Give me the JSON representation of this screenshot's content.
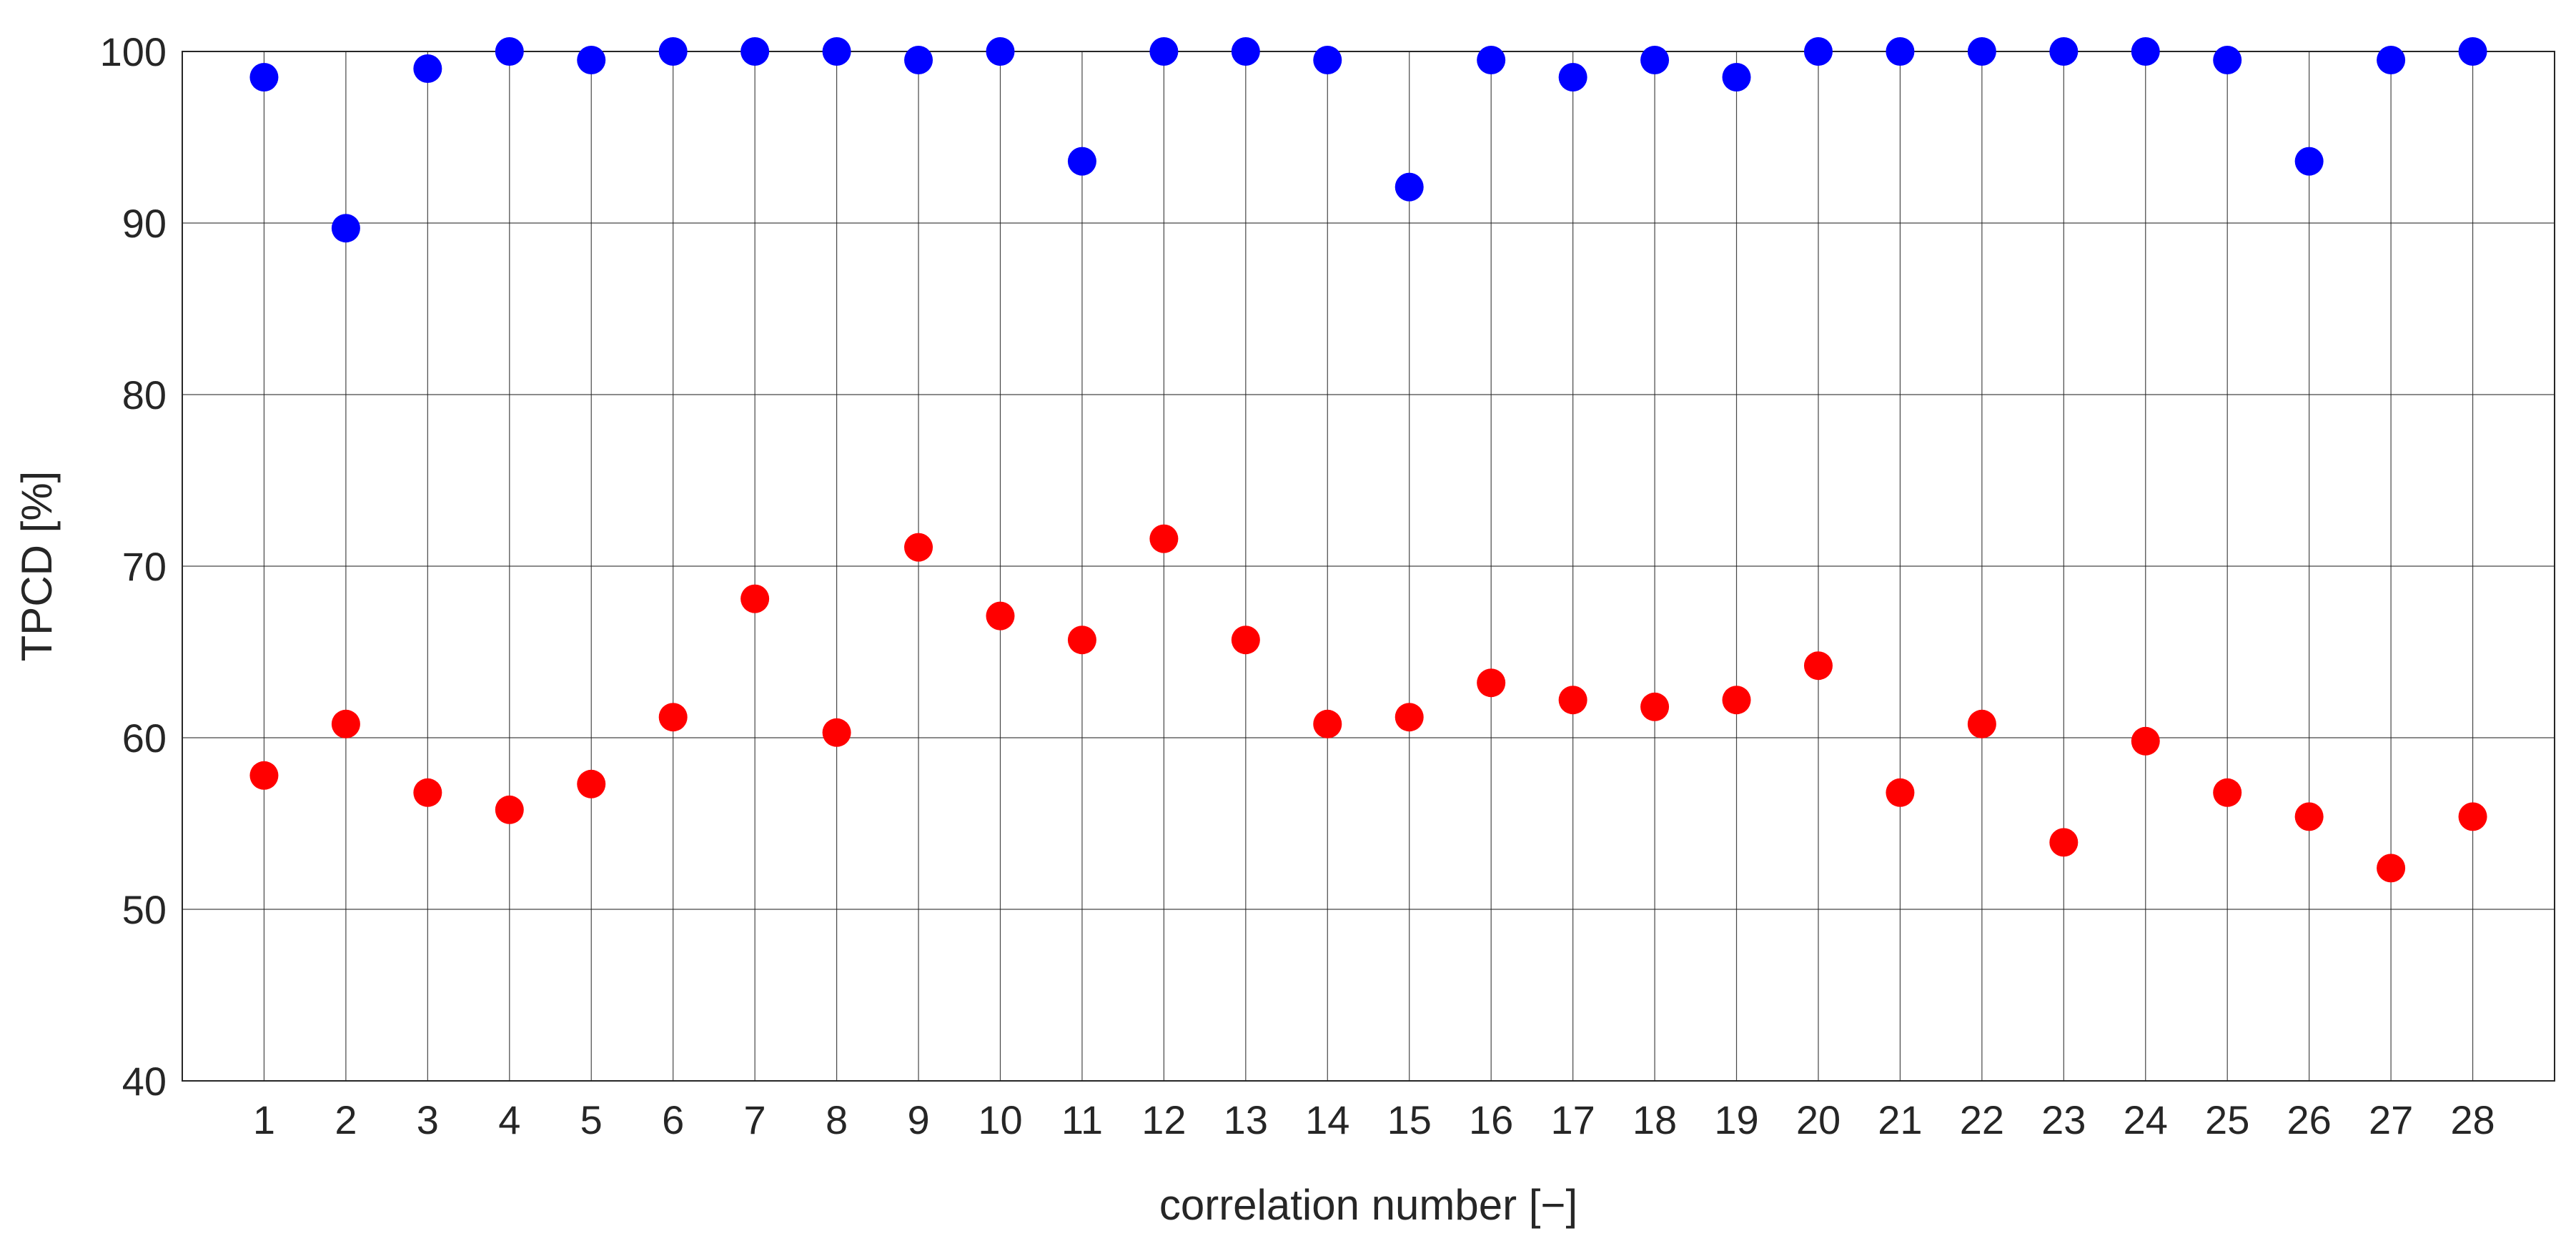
{
  "chart_data": {
    "type": "scatter",
    "title": "",
    "xlabel": "correlation number [−]",
    "ylabel": "TPCD [%]",
    "xlim": [
      0,
      29
    ],
    "ylim": [
      40,
      100
    ],
    "x_ticks": [
      "1",
      "2",
      "3",
      "4",
      "5",
      "6",
      "7",
      "8",
      "9",
      "10",
      "11",
      "12",
      "13",
      "14",
      "15",
      "16",
      "17",
      "18",
      "19",
      "20",
      "21",
      "22",
      "23",
      "24",
      "25",
      "26",
      "27",
      "28"
    ],
    "y_ticks": [
      "40",
      "50",
      "60",
      "70",
      "80",
      "90",
      "100"
    ],
    "grid": true,
    "legend": "none",
    "x": [
      1,
      2,
      3,
      4,
      5,
      6,
      7,
      8,
      9,
      10,
      11,
      12,
      13,
      14,
      15,
      16,
      17,
      18,
      19,
      20,
      21,
      22,
      23,
      24,
      25,
      26,
      27,
      28
    ],
    "series": [
      {
        "color": "#0000ff",
        "values": [
          98.5,
          89.7,
          99.0,
          100.0,
          99.5,
          100.0,
          100.0,
          100.0,
          99.5,
          100.0,
          93.6,
          100.0,
          100.0,
          99.5,
          92.1,
          99.5,
          98.5,
          99.5,
          98.5,
          100.0,
          100.0,
          100.0,
          100.0,
          100.0,
          99.5,
          93.6,
          99.5,
          100.0
        ]
      },
      {
        "color": "#ff0000",
        "values": [
          57.8,
          60.8,
          56.8,
          55.8,
          57.3,
          61.2,
          68.1,
          60.3,
          71.1,
          67.1,
          65.7,
          71.6,
          65.7,
          60.8,
          61.2,
          63.2,
          62.2,
          61.8,
          62.2,
          64.2,
          56.8,
          60.8,
          53.9,
          59.8,
          56.8,
          55.4,
          52.4,
          55.4
        ]
      }
    ]
  }
}
